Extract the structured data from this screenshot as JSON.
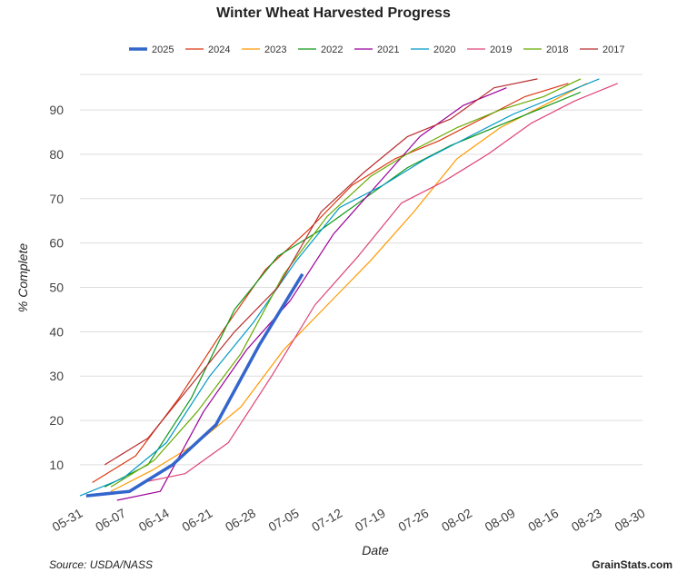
{
  "chart_data": {
    "type": "line",
    "title": "Winter Wheat Harvested Progress",
    "xlabel": "Date",
    "ylabel": "% Complete",
    "x_tick_labels": [
      "05-31",
      "06-07",
      "06-14",
      "06-21",
      "06-28",
      "07-05",
      "07-12",
      "07-19",
      "07-26",
      "08-02",
      "08-09",
      "08-16",
      "08-23",
      "08-30"
    ],
    "x_unit": "day offset from 05-31",
    "xlim": [
      0,
      91
    ],
    "yticks": [
      10,
      20,
      30,
      40,
      50,
      60,
      70,
      80,
      90
    ],
    "ylim": [
      2,
      98
    ],
    "grid": true,
    "legend_position": "top",
    "series": [
      {
        "name": "2025",
        "color": "#3366cc",
        "bold": true,
        "x": [
          1,
          8,
          15,
          22,
          29,
          36
        ],
        "y": [
          3,
          4,
          10,
          19,
          37,
          53
        ]
      },
      {
        "name": "2024",
        "color": "#dc3912",
        "x": [
          2,
          9,
          16,
          23,
          30,
          37,
          44,
          51,
          58,
          65,
          72,
          79
        ],
        "y": [
          6,
          12,
          25,
          40,
          54,
          63,
          73,
          79,
          83,
          88,
          93,
          96
        ]
      },
      {
        "name": "2023",
        "color": "#ff9900",
        "x": [
          5,
          12,
          19,
          26,
          33,
          40,
          47,
          54,
          61,
          68,
          75,
          82
        ],
        "y": [
          4,
          9,
          15,
          23,
          36,
          46,
          56,
          67,
          79,
          86,
          91,
          96
        ]
      },
      {
        "name": "2022",
        "color": "#109618",
        "x": [
          4,
          11,
          18,
          25,
          32,
          39,
          46,
          53,
          60,
          67,
          74,
          81
        ],
        "y": [
          5,
          10,
          25,
          45,
          57,
          63,
          70,
          77,
          82,
          86,
          90,
          94
        ]
      },
      {
        "name": "2021",
        "color": "#990099",
        "x": [
          6,
          13,
          20,
          27,
          34,
          41,
          48,
          55,
          62,
          69
        ],
        "y": [
          2,
          4,
          22,
          36,
          47,
          62,
          73,
          84,
          91,
          95
        ]
      },
      {
        "name": "2020",
        "color": "#0099c6",
        "x": [
          0,
          7,
          14,
          21,
          28,
          35,
          42,
          49,
          56,
          63,
          70,
          77,
          84
        ],
        "y": [
          3,
          7,
          15,
          30,
          42,
          56,
          68,
          73,
          79,
          84,
          89,
          93,
          97
        ]
      },
      {
        "name": "2019",
        "color": "#dd4477",
        "x": [
          10,
          17,
          24,
          31,
          38,
          45,
          52,
          59,
          66,
          73,
          80,
          87
        ],
        "y": [
          6,
          8,
          15,
          30,
          46,
          57,
          69,
          74,
          80,
          87,
          92,
          96
        ]
      },
      {
        "name": "2018",
        "color": "#66aa00",
        "x": [
          5,
          12,
          19,
          26,
          33,
          40,
          47,
          54,
          61,
          68,
          75,
          81
        ],
        "y": [
          5,
          11,
          22,
          35,
          53,
          66,
          75,
          81,
          86,
          90,
          93,
          97
        ]
      },
      {
        "name": "2017",
        "color": "#b82e2e",
        "x": [
          4,
          11,
          18,
          25,
          32,
          39,
          46,
          53,
          60,
          67,
          74
        ],
        "y": [
          10,
          16,
          28,
          40,
          50,
          67,
          76,
          84,
          88,
          95,
          97
        ]
      }
    ]
  },
  "footer": {
    "source": "Source: USDA/NASS",
    "brand": "GrainStats.com"
  }
}
